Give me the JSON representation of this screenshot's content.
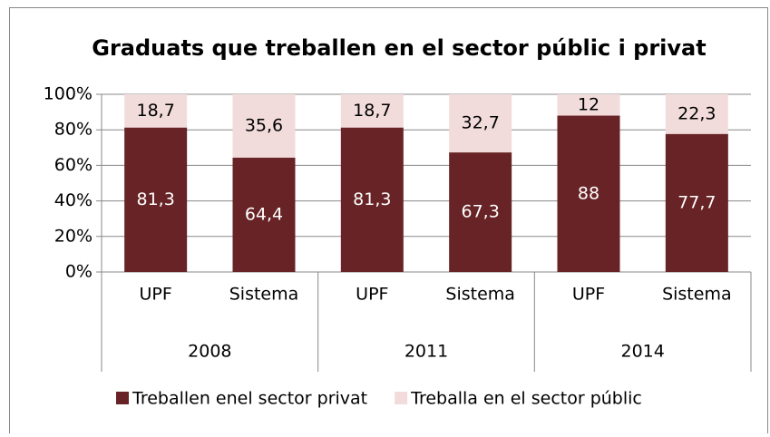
{
  "chart_data": {
    "type": "stacked_bar",
    "title": "Graduats que treballen en el sector públic i privat",
    "categories": [
      "UPF",
      "Sistema",
      "UPF",
      "Sistema",
      "UPF",
      "Sistema"
    ],
    "groups": [
      "2008",
      "2011",
      "2014"
    ],
    "series": [
      {
        "name": "Treballen enel sector privat",
        "color": "#672325",
        "values": [
          81.3,
          64.4,
          81.3,
          67.3,
          88,
          77.7
        ],
        "value_labels": [
          "81,3",
          "64,4",
          "81,3",
          "67,3",
          "88",
          "77,7"
        ]
      },
      {
        "name": "Treballa en el sector públic",
        "color": "#f2dcdb",
        "values": [
          18.7,
          35.6,
          18.7,
          32.7,
          12,
          22.3
        ],
        "value_labels": [
          "18,7",
          "35,6",
          "18,7",
          "32,7",
          "12",
          "22,3"
        ]
      }
    ],
    "ylim": [
      0,
      100
    ],
    "yticks": [
      {
        "value": 0,
        "label": "0%"
      },
      {
        "value": 20,
        "label": "20%"
      },
      {
        "value": 40,
        "label": "40%"
      },
      {
        "value": 60,
        "label": "60%"
      },
      {
        "value": 80,
        "label": "80%"
      },
      {
        "value": 100,
        "label": "100%"
      }
    ],
    "grid": true,
    "legend": "bottom"
  }
}
